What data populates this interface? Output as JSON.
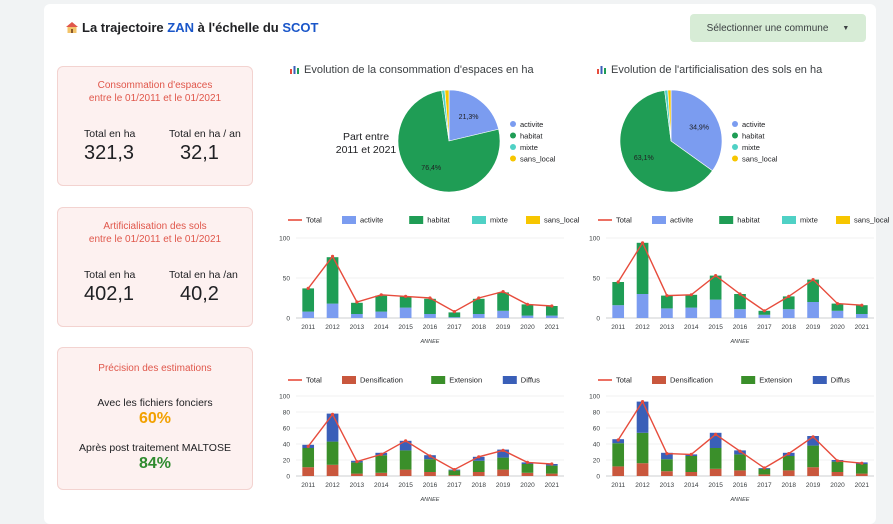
{
  "header": {
    "title_pre": "La trajectoire ",
    "title_zan": "ZAN",
    "title_mid": " à l'échelle du ",
    "title_scot": "SCOT",
    "dropdown_label": "Sélectionner une commune"
  },
  "colors": {
    "activite": "#7b9cf0",
    "habitat": "#1f9d55",
    "mixte": "#4fd1c5",
    "sans_local": "#f7c600",
    "total": "#e74c3c",
    "densification": "#c9573d",
    "extension": "#3a8f2a",
    "diffus": "#3a5fb8",
    "kpi_title": "#e0574b",
    "orange": "#f2a100",
    "green": "#2e8b2e"
  },
  "kpis": {
    "conso": {
      "title_l1": "Consommation d'espaces",
      "title_l2": "entre le 01/2011 et le 01/2021",
      "label_total": "Total en ha",
      "value_total": "321,3",
      "label_an": "Total en ha / an",
      "value_an": "32,1"
    },
    "artif": {
      "title_l1": "Artificialisation des sols",
      "title_l2": "entre le 01/2011 et le 01/2021",
      "label_total": "Total en ha",
      "value_total": "402,1",
      "label_an": "Total en ha /an",
      "value_an": "40,2"
    },
    "precision": {
      "title": "Précision des estimations",
      "label_ff": "Avec les fichiers fonciers",
      "value_ff": "60%",
      "label_maltose": "Après post traitement MALTOSE",
      "value_maltose": "84%"
    }
  },
  "chart_data": [
    {
      "id": "pie_conso",
      "type": "pie",
      "title": "Evolution de la consommation d'espaces en ha",
      "annotation_l1": "Part entre",
      "annotation_l2": "2011 et 2021",
      "labels": [
        "activite",
        "habitat",
        "mixte",
        "sans_local"
      ],
      "values": [
        21.3,
        76.4,
        1.0,
        1.3
      ],
      "value_labels": [
        "21,3%",
        "76,4%",
        "",
        ""
      ]
    },
    {
      "id": "pie_artif",
      "type": "pie",
      "title": "Evolution de l'artificialisation des sols en ha",
      "labels": [
        "activite",
        "habitat",
        "mixte",
        "sans_local"
      ],
      "values": [
        34.9,
        63.1,
        1.0,
        1.0
      ],
      "value_labels": [
        "34,9%",
        "63,1%",
        "",
        ""
      ]
    },
    {
      "id": "bar_conso_type",
      "type": "bar",
      "stacked": true,
      "xlabel": "ANNEE",
      "ylim": [
        0,
        100
      ],
      "yticks": [
        "0",
        "50",
        "100"
      ],
      "legend": [
        "Total",
        "activite",
        "habitat",
        "mixte",
        "sans_local"
      ],
      "categories": [
        "2011",
        "2012",
        "2013",
        "2014",
        "2015",
        "2016",
        "2017",
        "2018",
        "2019",
        "2020",
        "2021"
      ],
      "series": [
        {
          "name": "activite",
          "values": [
            8,
            18,
            5,
            8,
            13,
            5,
            1,
            5,
            9,
            3,
            3
          ]
        },
        {
          "name": "habitat",
          "values": [
            29,
            58,
            14,
            20,
            14,
            19,
            6,
            19,
            23,
            14,
            12
          ]
        },
        {
          "name": "mixte",
          "values": [
            0,
            0,
            0,
            0,
            0,
            0,
            0,
            0,
            0,
            0,
            0
          ]
        },
        {
          "name": "sans_local",
          "values": [
            0,
            0,
            0,
            0,
            0,
            0,
            0,
            0,
            0,
            0,
            0
          ]
        }
      ],
      "total": [
        37,
        77,
        20,
        29,
        27,
        25,
        8,
        25,
        33,
        17,
        15
      ]
    },
    {
      "id": "bar_artif_type",
      "type": "bar",
      "stacked": true,
      "xlabel": "ANNEE",
      "ylim": [
        0,
        100
      ],
      "yticks": [
        "0",
        "50",
        "100"
      ],
      "legend": [
        "Total",
        "activite",
        "habitat",
        "mixte",
        "sans_local"
      ],
      "categories": [
        "2011",
        "2012",
        "2013",
        "2014",
        "2015",
        "2016",
        "2017",
        "2018",
        "2019",
        "2020",
        "2021"
      ],
      "series": [
        {
          "name": "activite",
          "values": [
            16,
            30,
            12,
            13,
            23,
            11,
            4,
            11,
            20,
            9,
            5
          ]
        },
        {
          "name": "habitat",
          "values": [
            29,
            64,
            16,
            16,
            30,
            19,
            5,
            16,
            28,
            9,
            11
          ]
        },
        {
          "name": "mixte",
          "values": [
            0,
            0,
            0,
            0,
            0,
            0,
            0,
            0,
            0,
            0,
            0
          ]
        },
        {
          "name": "sans_local",
          "values": [
            0,
            0,
            0,
            0,
            0,
            0,
            0,
            0,
            0,
            0,
            0
          ]
        }
      ],
      "total": [
        45,
        94,
        28,
        29,
        53,
        30,
        9,
        27,
        48,
        18,
        16
      ]
    },
    {
      "id": "bar_conso_mode",
      "type": "bar",
      "stacked": true,
      "xlabel": "ANNEE",
      "ylim": [
        0,
        100
      ],
      "yticks": [
        "0",
        "20",
        "40",
        "60",
        "80",
        "100"
      ],
      "legend": [
        "Total",
        "Densification",
        "Extension",
        "Diffus"
      ],
      "categories": [
        "2011",
        "2012",
        "2013",
        "2014",
        "2015",
        "2016",
        "2017",
        "2018",
        "2019",
        "2020",
        "2021"
      ],
      "series": [
        {
          "name": "Densification",
          "values": [
            11,
            14,
            3,
            4,
            8,
            5,
            1,
            5,
            8,
            4,
            3
          ]
        },
        {
          "name": "Extension",
          "values": [
            24,
            29,
            14,
            22,
            24,
            16,
            6,
            14,
            15,
            11,
            10
          ]
        },
        {
          "name": "Diffus",
          "values": [
            4,
            35,
            2,
            3,
            12,
            5,
            1,
            5,
            10,
            2,
            2
          ]
        }
      ],
      "total": [
        37,
        77,
        18,
        27,
        44,
        25,
        8,
        24,
        32,
        17,
        15
      ]
    },
    {
      "id": "bar_artif_mode",
      "type": "bar",
      "stacked": true,
      "xlabel": "ANNEE",
      "ylim": [
        0,
        100
      ],
      "yticks": [
        "0",
        "20",
        "40",
        "60",
        "80",
        "100"
      ],
      "legend": [
        "Total",
        "Densification",
        "Extension",
        "Diffus"
      ],
      "categories": [
        "2011",
        "2012",
        "2013",
        "2014",
        "2015",
        "2016",
        "2017",
        "2018",
        "2019",
        "2020",
        "2021"
      ],
      "series": [
        {
          "name": "Densification",
          "values": [
            12,
            16,
            6,
            5,
            9,
            7,
            2,
            7,
            11,
            5,
            3
          ]
        },
        {
          "name": "Extension",
          "values": [
            29,
            38,
            15,
            20,
            26,
            20,
            7,
            18,
            27,
            13,
            12
          ]
        },
        {
          "name": "Diffus",
          "values": [
            5,
            39,
            8,
            2,
            19,
            5,
            1,
            4,
            12,
            2,
            2
          ]
        }
      ],
      "total": [
        45,
        93,
        28,
        27,
        52,
        31,
        10,
        28,
        49,
        19,
        16
      ]
    }
  ]
}
